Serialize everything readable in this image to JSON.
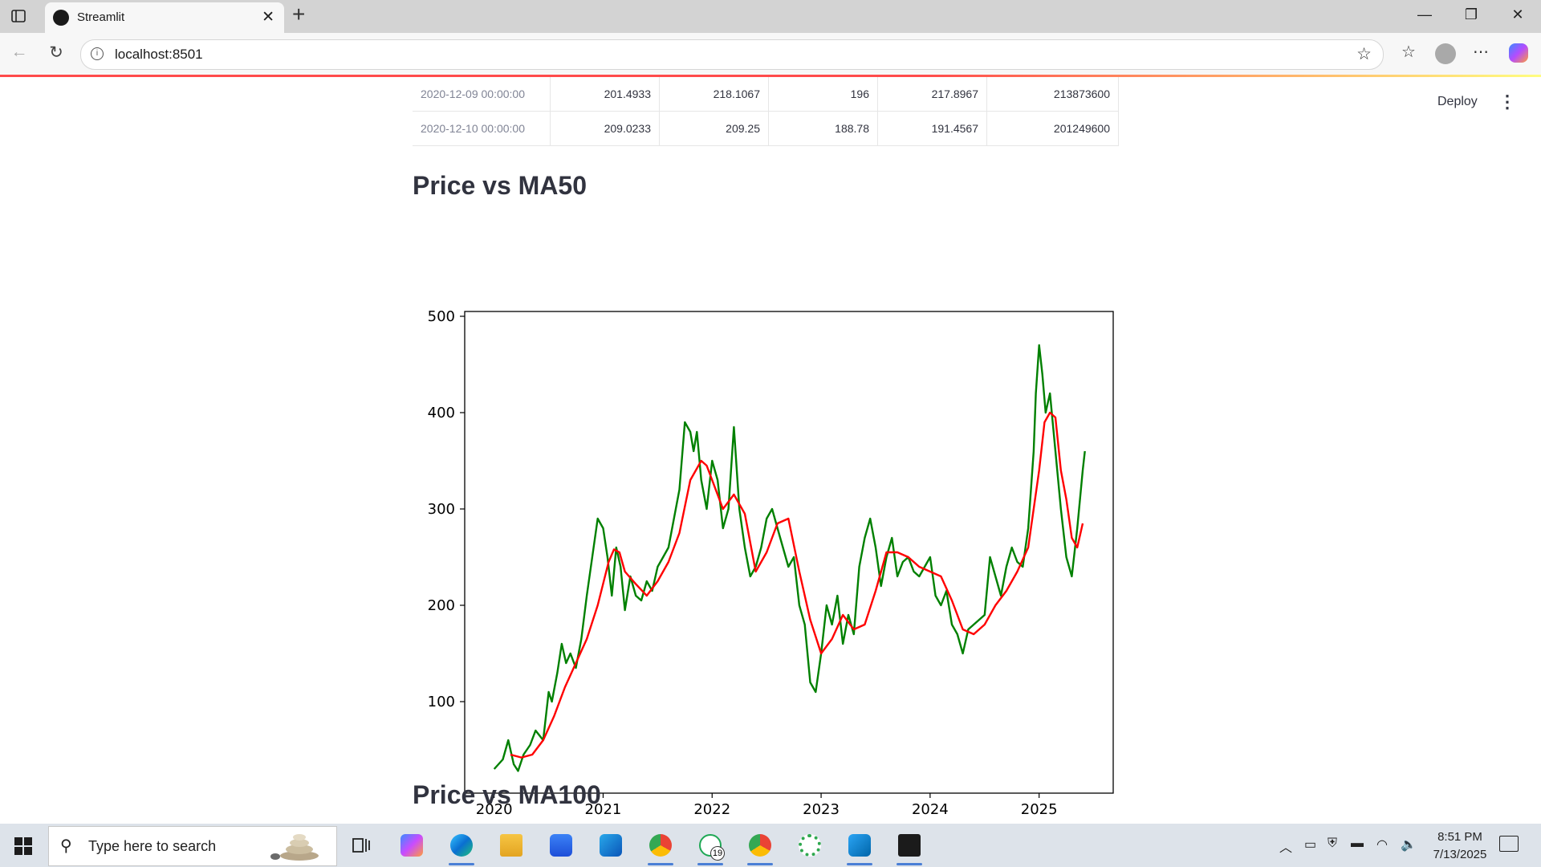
{
  "browser": {
    "tab_title": "Streamlit",
    "url": "localhost:8501",
    "new_tab_glyph": "+",
    "close_glyph": "✕",
    "minimize_glyph": "—",
    "restore_glyph": "❐",
    "window_close_glyph": "✕"
  },
  "app": {
    "deploy_label": "Deploy",
    "menu_glyph": "⋮",
    "table": {
      "rows": [
        {
          "index": "2020-12-09 00:00:00",
          "values": [
            "201.4933",
            "218.1067",
            "196",
            "217.8967",
            "213873600"
          ]
        },
        {
          "index": "2020-12-10 00:00:00",
          "values": [
            "209.0233",
            "209.25",
            "188.78",
            "191.4567",
            "201249600"
          ]
        }
      ]
    },
    "section_1_title": "Price vs MA50",
    "section_2_title": "Price vs MA100"
  },
  "chart_data": {
    "type": "line",
    "title": "",
    "xlabel": "",
    "ylabel": "",
    "xlim": [
      2019.73,
      2025.68
    ],
    "ylim": [
      5,
      505
    ],
    "xticks": [
      "2020",
      "2021",
      "2022",
      "2023",
      "2024",
      "2025"
    ],
    "yticks": [
      "100",
      "200",
      "300",
      "400",
      "500"
    ],
    "grid": false,
    "series": [
      {
        "color": "#008000",
        "x": [
          2020.0,
          2020.08,
          2020.13,
          2020.18,
          2020.22,
          2020.27,
          2020.33,
          2020.38,
          2020.45,
          2020.5,
          2020.53,
          2020.58,
          2020.62,
          2020.66,
          2020.7,
          2020.75,
          2020.8,
          2020.85,
          2020.9,
          2020.95,
          2021.0,
          2021.04,
          2021.08,
          2021.12,
          2021.16,
          2021.2,
          2021.25,
          2021.3,
          2021.35,
          2021.4,
          2021.45,
          2021.5,
          2021.55,
          2021.6,
          2021.65,
          2021.7,
          2021.75,
          2021.8,
          2021.83,
          2021.86,
          2021.9,
          2021.95,
          2022.0,
          2022.05,
          2022.1,
          2022.15,
          2022.2,
          2022.25,
          2022.3,
          2022.35,
          2022.4,
          2022.45,
          2022.5,
          2022.55,
          2022.6,
          2022.65,
          2022.7,
          2022.75,
          2022.8,
          2022.85,
          2022.9,
          2022.95,
          2023.0,
          2023.05,
          2023.1,
          2023.15,
          2023.2,
          2023.25,
          2023.3,
          2023.35,
          2023.4,
          2023.45,
          2023.5,
          2023.55,
          2023.6,
          2023.65,
          2023.7,
          2023.75,
          2023.8,
          2023.85,
          2023.9,
          2023.95,
          2024.0,
          2024.05,
          2024.1,
          2024.15,
          2024.2,
          2024.25,
          2024.3,
          2024.35,
          2024.4,
          2024.45,
          2024.5,
          2024.55,
          2024.6,
          2024.65,
          2024.7,
          2024.75,
          2024.8,
          2024.85,
          2024.9,
          2024.95,
          2024.97,
          2025.0,
          2025.03,
          2025.06,
          2025.1,
          2025.15,
          2025.2,
          2025.25,
          2025.3,
          2025.35,
          2025.4,
          2025.42
        ],
        "values": [
          30,
          40,
          60,
          35,
          28,
          45,
          55,
          70,
          60,
          110,
          100,
          130,
          160,
          140,
          150,
          135,
          165,
          210,
          250,
          290,
          280,
          250,
          210,
          260,
          240,
          195,
          230,
          210,
          205,
          225,
          215,
          240,
          250,
          260,
          290,
          320,
          390,
          380,
          360,
          380,
          330,
          300,
          350,
          330,
          280,
          300,
          385,
          300,
          260,
          230,
          240,
          260,
          290,
          300,
          280,
          260,
          240,
          250,
          200,
          180,
          120,
          110,
          150,
          200,
          180,
          210,
          160,
          190,
          170,
          240,
          270,
          290,
          260,
          220,
          250,
          270,
          230,
          245,
          250,
          235,
          230,
          240,
          250,
          210,
          200,
          215,
          180,
          170,
          150,
          175,
          180,
          185,
          190,
          250,
          230,
          210,
          240,
          260,
          245,
          240,
          280,
          360,
          420,
          470,
          440,
          400,
          420,
          360,
          300,
          250,
          230,
          280,
          340,
          360
        ]
      },
      {
        "color": "#ff0000",
        "x": [
          2020.15,
          2020.25,
          2020.35,
          2020.45,
          2020.55,
          2020.65,
          2020.75,
          2020.85,
          2020.95,
          2021.05,
          2021.1,
          2021.15,
          2021.2,
          2021.3,
          2021.4,
          2021.5,
          2021.6,
          2021.7,
          2021.8,
          2021.9,
          2021.95,
          2022.0,
          2022.1,
          2022.2,
          2022.3,
          2022.4,
          2022.5,
          2022.6,
          2022.7,
          2022.8,
          2022.9,
          2023.0,
          2023.1,
          2023.2,
          2023.3,
          2023.4,
          2023.5,
          2023.6,
          2023.7,
          2023.8,
          2023.9,
          2024.0,
          2024.1,
          2024.2,
          2024.3,
          2024.4,
          2024.5,
          2024.6,
          2024.7,
          2024.8,
          2024.9,
          2025.0,
          2025.05,
          2025.1,
          2025.15,
          2025.2,
          2025.25,
          2025.3,
          2025.35,
          2025.4
        ],
        "values": [
          45,
          42,
          45,
          60,
          85,
          115,
          140,
          165,
          200,
          245,
          258,
          255,
          235,
          222,
          210,
          225,
          245,
          275,
          330,
          350,
          345,
          330,
          300,
          315,
          295,
          235,
          255,
          285,
          290,
          235,
          185,
          150,
          165,
          190,
          175,
          180,
          215,
          255,
          255,
          250,
          240,
          235,
          230,
          205,
          175,
          170,
          180,
          200,
          215,
          235,
          260,
          340,
          390,
          400,
          395,
          340,
          310,
          270,
          260,
          285
        ]
      }
    ]
  },
  "taskbar": {
    "search_placeholder": "Type here to search",
    "search_glyph": "⚲",
    "whatsapp_badge": "19",
    "clock_time": "8:51 PM",
    "clock_date": "7/13/2025",
    "icons": [
      "task-view-icon",
      "copilot-icon",
      "edge-icon",
      "file-explorer-icon",
      "store-icon",
      "outlook-icon",
      "chrome-profile-k-icon",
      "whatsapp-icon",
      "chrome-profile-k2-icon",
      "circular-app-icon",
      "vscode-icon",
      "terminal-icon"
    ]
  }
}
